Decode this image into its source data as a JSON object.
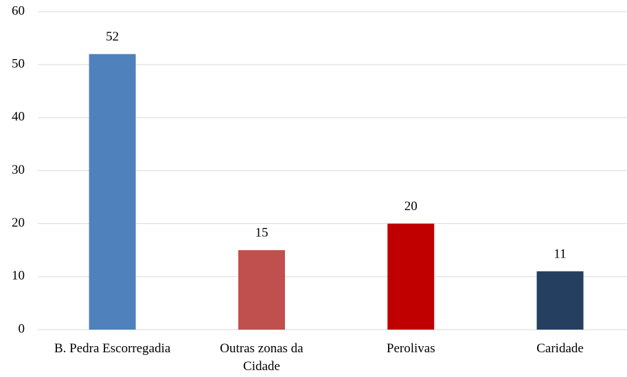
{
  "chart_data": {
    "type": "bar",
    "categories": [
      "B. Pedra Escorregadia",
      "Outras zonas da Cidade",
      "Perolivas",
      "Caridade"
    ],
    "values": [
      52,
      15,
      20,
      11
    ],
    "colors": [
      "#4f81bd",
      "#c0504d",
      "#c00000",
      "#243f60"
    ],
    "ylim": [
      0,
      60
    ],
    "yticks": [
      0,
      10,
      20,
      30,
      40,
      50,
      60
    ],
    "grid": true,
    "data_labels": true
  }
}
